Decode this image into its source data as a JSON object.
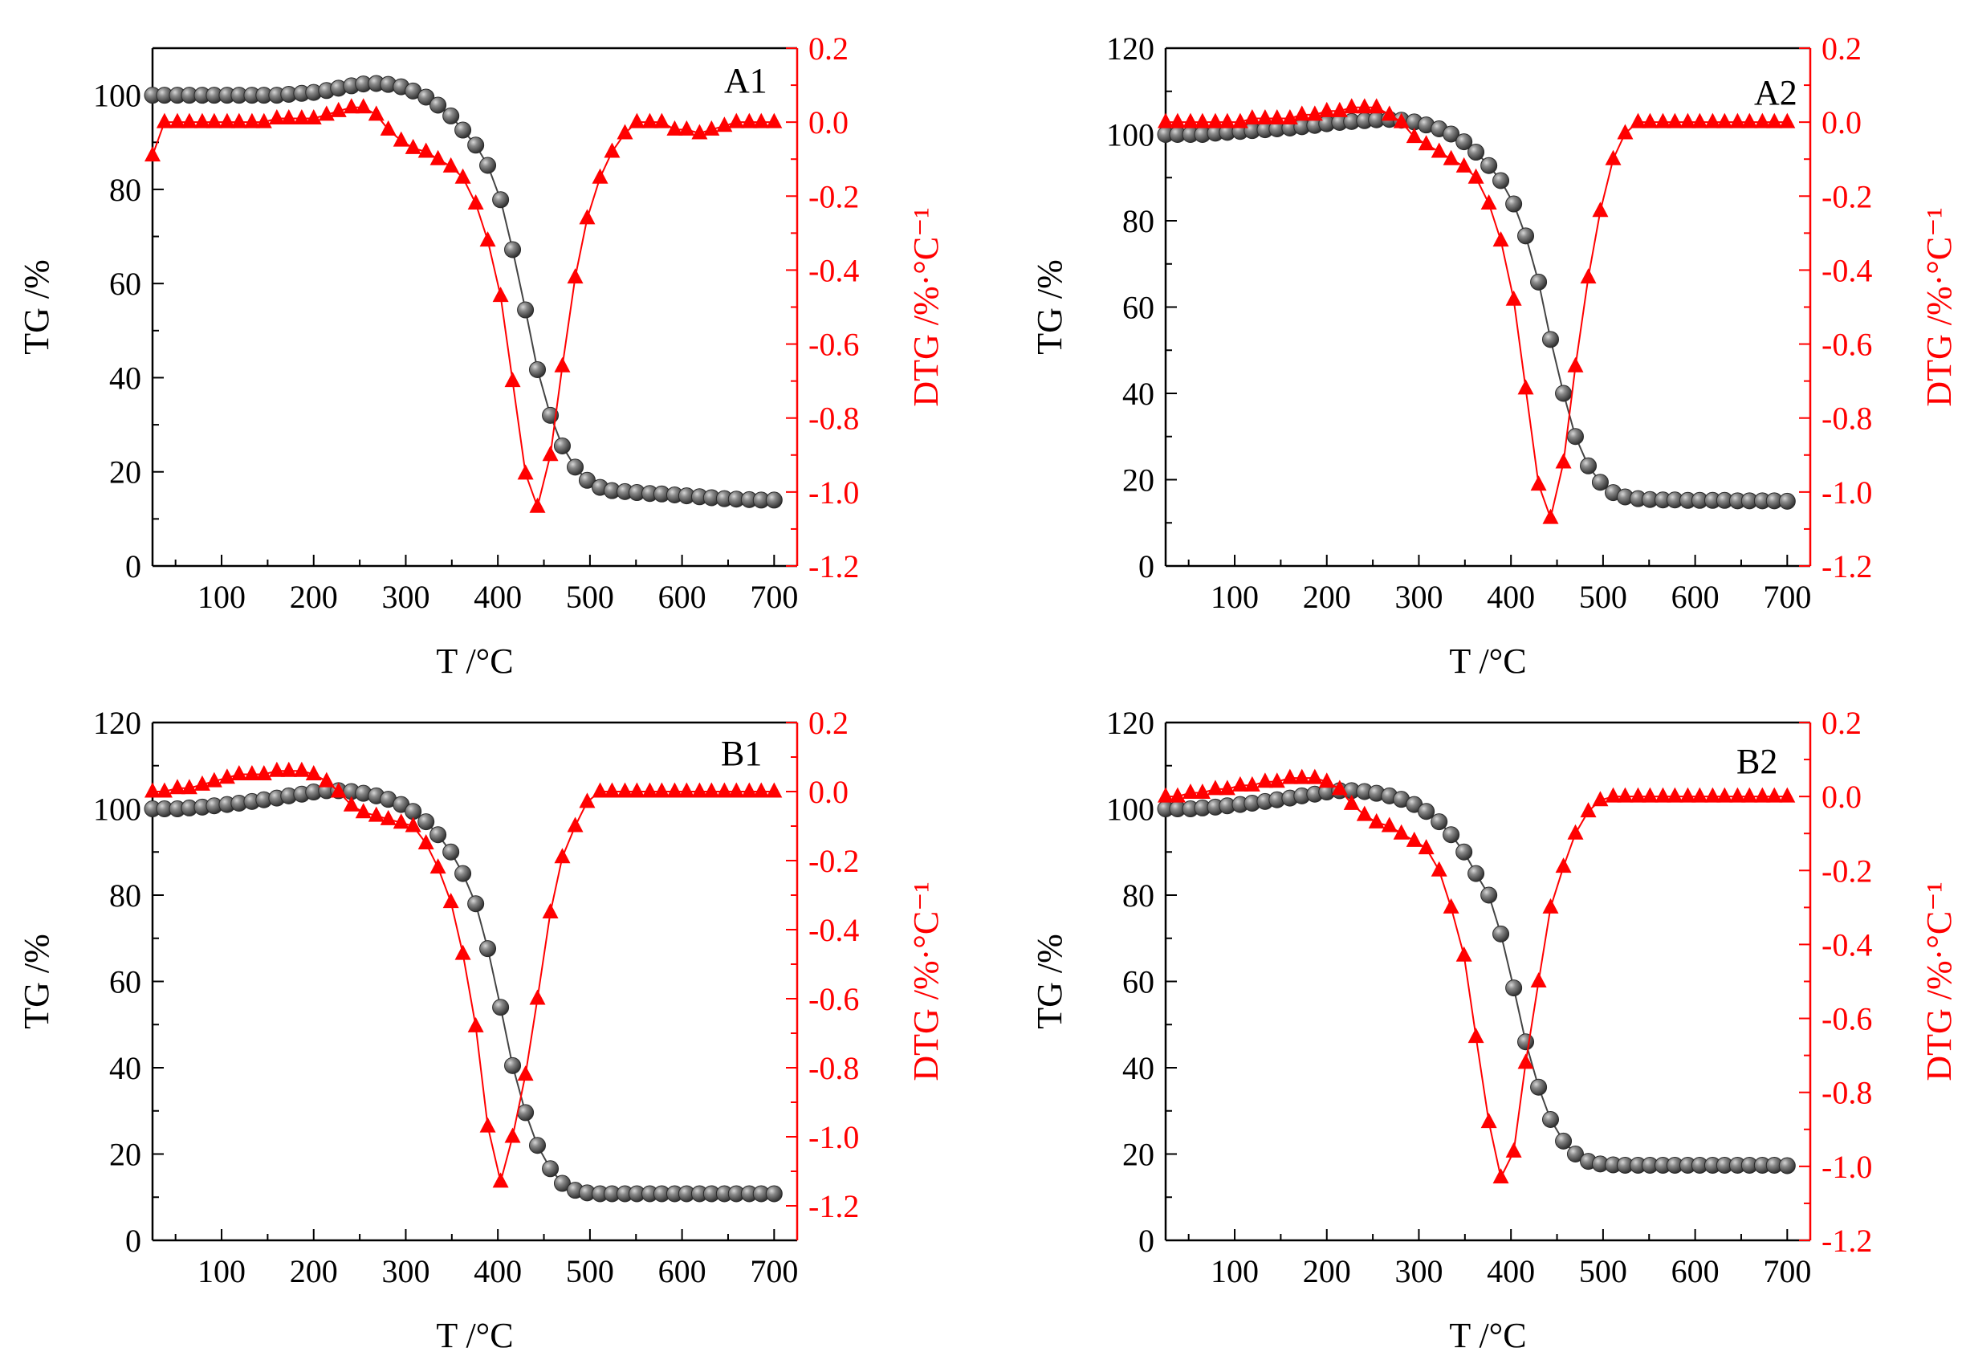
{
  "chart_data": [
    {
      "type": "line",
      "panel": "A1",
      "x": [
        25,
        38,
        52,
        65,
        79,
        92,
        106,
        119,
        133,
        146,
        160,
        173,
        187,
        200,
        214,
        227,
        241,
        254,
        268,
        281,
        295,
        308,
        322,
        335,
        349,
        362,
        376,
        389,
        403,
        416,
        430,
        443,
        457,
        470,
        484,
        497,
        511,
        524,
        538,
        551,
        565,
        578,
        592,
        605,
        619,
        632,
        646,
        659,
        673,
        686,
        700
      ],
      "series": [
        {
          "name": "TG",
          "axis": "left",
          "marker": "sphere",
          "color": "#404040",
          "values": [
            100,
            100,
            100,
            100,
            100,
            100,
            100,
            100,
            100,
            100,
            100,
            100.2,
            100.4,
            100.6,
            101,
            101.5,
            102,
            102.4,
            102.5,
            102.3,
            101.8,
            100.9,
            99.6,
            97.9,
            95.6,
            92.6,
            89.4,
            85.1,
            77.8,
            67.2,
            54.4,
            41.7,
            32,
            25.5,
            21,
            18.2,
            16.7,
            16,
            15.8,
            15.6,
            15.4,
            15.3,
            15.1,
            14.9,
            14.7,
            14.5,
            14.3,
            14.2,
            14.1,
            14,
            14
          ]
        },
        {
          "name": "DTG",
          "axis": "right",
          "marker": "triangle",
          "color": "#ff0000",
          "values": [
            -0.09,
            0,
            0,
            0,
            0,
            0,
            0,
            0,
            0,
            0,
            0.01,
            0.01,
            0.01,
            0.01,
            0.02,
            0.03,
            0.04,
            0.04,
            0.02,
            -0.02,
            -0.05,
            -0.07,
            -0.08,
            -0.1,
            -0.12,
            -0.15,
            -0.22,
            -0.32,
            -0.47,
            -0.7,
            -0.95,
            -1.04,
            -0.9,
            -0.66,
            -0.42,
            -0.26,
            -0.15,
            -0.08,
            -0.03,
            0,
            0,
            0,
            -0.02,
            -0.02,
            -0.03,
            -0.02,
            -0.01,
            0,
            0,
            0,
            0
          ]
        }
      ],
      "xlabel": "T /°C",
      "ylabel": "TG /%",
      "y2label": "DTG /%·°C⁻¹",
      "xlim": [
        25,
        725
      ],
      "ylim": [
        0,
        110
      ],
      "y2lim": [
        -1.2,
        0.2
      ],
      "xticks": [
        "100",
        "200",
        "300",
        "400",
        "500",
        "600",
        "700"
      ],
      "yticks": [
        "0",
        "20",
        "40",
        "60",
        "80",
        "100"
      ],
      "y2ticks": [
        "-1.2",
        "-1.0",
        "-0.8",
        "-0.6",
        "-0.4",
        "-0.2",
        "0.0",
        "0.2"
      ],
      "legend": "none"
    },
    {
      "type": "line",
      "panel": "A2",
      "x": [
        25,
        38,
        52,
        65,
        79,
        92,
        106,
        119,
        133,
        146,
        160,
        173,
        187,
        200,
        214,
        227,
        241,
        254,
        268,
        281,
        295,
        308,
        322,
        335,
        349,
        362,
        376,
        389,
        403,
        416,
        430,
        443,
        457,
        470,
        484,
        497,
        511,
        524,
        538,
        551,
        565,
        578,
        592,
        605,
        619,
        632,
        646,
        659,
        673,
        686,
        700
      ],
      "series": [
        {
          "name": "TG",
          "axis": "left",
          "marker": "sphere",
          "color": "#404040",
          "values": [
            100,
            100,
            100,
            100,
            100.3,
            100.5,
            100.7,
            100.9,
            101.1,
            101.3,
            101.5,
            101.8,
            102.1,
            102.5,
            102.8,
            103,
            103.2,
            103.4,
            103.5,
            103.3,
            102.9,
            102.2,
            101.3,
            100.1,
            98.3,
            95.9,
            92.8,
            89.3,
            83.9,
            76.5,
            65.8,
            52.5,
            40,
            30,
            23.2,
            19.4,
            17,
            16,
            15.6,
            15.4,
            15.3,
            15.3,
            15.2,
            15.2,
            15.2,
            15.2,
            15.1,
            15.1,
            15.1,
            15.1,
            15
          ]
        },
        {
          "name": "DTG",
          "axis": "right",
          "marker": "triangle",
          "color": "#ff0000",
          "values": [
            0,
            0,
            0,
            0,
            0,
            0,
            0,
            0.01,
            0.01,
            0.01,
            0.01,
            0.02,
            0.02,
            0.03,
            0.03,
            0.04,
            0.04,
            0.04,
            0.02,
            0,
            -0.04,
            -0.06,
            -0.08,
            -0.1,
            -0.12,
            -0.15,
            -0.22,
            -0.32,
            -0.48,
            -0.72,
            -0.98,
            -1.07,
            -0.92,
            -0.66,
            -0.42,
            -0.24,
            -0.1,
            -0.03,
            0,
            0,
            0,
            0,
            0,
            0,
            0,
            0,
            0,
            0,
            0,
            0,
            0
          ]
        }
      ],
      "xlabel": "T /°C",
      "ylabel": "TG /%",
      "y2label": "DTG /%·°C⁻¹",
      "xlim": [
        25,
        725
      ],
      "ylim": [
        0,
        120
      ],
      "y2lim": [
        -1.2,
        0.2
      ],
      "xticks": [
        "100",
        "200",
        "300",
        "400",
        "500",
        "600",
        "700"
      ],
      "yticks": [
        "0",
        "20",
        "40",
        "60",
        "80",
        "100",
        "120"
      ],
      "y2ticks": [
        "-1.2",
        "-1.0",
        "-0.8",
        "-0.6",
        "-0.4",
        "-0.2",
        "0.0",
        "0.2"
      ],
      "legend": "none"
    },
    {
      "type": "line",
      "panel": "B1",
      "x": [
        25,
        38,
        52,
        65,
        79,
        92,
        106,
        119,
        133,
        146,
        160,
        173,
        187,
        200,
        214,
        227,
        241,
        254,
        268,
        281,
        295,
        308,
        322,
        335,
        349,
        362,
        376,
        389,
        403,
        416,
        430,
        443,
        457,
        470,
        484,
        497,
        511,
        524,
        538,
        551,
        565,
        578,
        592,
        605,
        619,
        632,
        646,
        659,
        673,
        686,
        700
      ],
      "series": [
        {
          "name": "TG",
          "axis": "left",
          "marker": "sphere",
          "color": "#404040",
          "values": [
            100,
            100,
            100,
            100.2,
            100.4,
            100.7,
            101,
            101.3,
            101.7,
            102.1,
            102.5,
            103,
            103.4,
            103.9,
            104.2,
            104.2,
            104,
            103.6,
            103,
            102.2,
            101,
            99.4,
            97,
            94,
            90,
            85,
            78,
            67.6,
            54,
            40.5,
            29.6,
            22,
            16.6,
            13.2,
            11.6,
            11,
            10.8,
            10.8,
            10.8,
            10.8,
            10.8,
            10.8,
            10.8,
            10.8,
            10.8,
            10.8,
            10.8,
            10.8,
            10.8,
            10.8,
            10.8
          ]
        },
        {
          "name": "DTG",
          "axis": "right",
          "marker": "triangle",
          "color": "#ff0000",
          "values": [
            0,
            0,
            0.01,
            0.01,
            0.02,
            0.03,
            0.04,
            0.05,
            0.05,
            0.05,
            0.06,
            0.06,
            0.06,
            0.05,
            0.03,
            0,
            -0.04,
            -0.06,
            -0.07,
            -0.08,
            -0.09,
            -0.1,
            -0.15,
            -0.22,
            -0.32,
            -0.47,
            -0.68,
            -0.97,
            -1.13,
            -1.0,
            -0.82,
            -0.6,
            -0.35,
            -0.19,
            -0.1,
            -0.03,
            0,
            0,
            0,
            0,
            0,
            0,
            0,
            0,
            0,
            0,
            0,
            0,
            0,
            0,
            0
          ]
        }
      ],
      "xlabel": "T /°C",
      "ylabel": "TG /%",
      "y2label": "DTG /%·°C⁻¹",
      "xlim": [
        25,
        725
      ],
      "ylim": [
        0,
        120
      ],
      "y2lim": [
        -1.3,
        0.2
      ],
      "xticks": [
        "100",
        "200",
        "300",
        "400",
        "500",
        "600",
        "700"
      ],
      "yticks": [
        "0",
        "20",
        "40",
        "60",
        "80",
        "100",
        "120"
      ],
      "y2ticks": [
        "-1.2",
        "-1.0",
        "-0.8",
        "-0.6",
        "-0.4",
        "-0.2",
        "0.0",
        "0.2"
      ],
      "legend": "none"
    },
    {
      "type": "line",
      "panel": "B2",
      "x": [
        25,
        38,
        52,
        65,
        79,
        92,
        106,
        119,
        133,
        146,
        160,
        173,
        187,
        200,
        214,
        227,
        241,
        254,
        268,
        281,
        295,
        308,
        322,
        335,
        349,
        362,
        376,
        389,
        403,
        416,
        430,
        443,
        457,
        470,
        484,
        497,
        511,
        524,
        538,
        551,
        565,
        578,
        592,
        605,
        619,
        632,
        646,
        659,
        673,
        686,
        700
      ],
      "series": [
        {
          "name": "TG",
          "axis": "left",
          "marker": "sphere",
          "color": "#404040",
          "values": [
            100,
            100,
            100,
            100.2,
            100.4,
            100.7,
            101,
            101.3,
            101.7,
            102.1,
            102.5,
            103,
            103.4,
            103.9,
            104.2,
            104.2,
            104,
            103.6,
            103,
            102.2,
            101,
            99.4,
            97,
            94,
            90,
            85,
            80,
            71,
            58.5,
            46,
            35.5,
            28,
            23,
            20,
            18.3,
            17.7,
            17.5,
            17.4,
            17.4,
            17.4,
            17.4,
            17.4,
            17.4,
            17.4,
            17.4,
            17.4,
            17.4,
            17.4,
            17.4,
            17.4,
            17.3
          ]
        },
        {
          "name": "DTG",
          "axis": "right",
          "marker": "triangle",
          "color": "#ff0000",
          "values": [
            0,
            0,
            0.01,
            0.01,
            0.02,
            0.02,
            0.03,
            0.03,
            0.04,
            0.04,
            0.05,
            0.05,
            0.05,
            0.04,
            0.02,
            -0.02,
            -0.05,
            -0.07,
            -0.08,
            -0.1,
            -0.12,
            -0.14,
            -0.2,
            -0.3,
            -0.43,
            -0.65,
            -0.88,
            -1.03,
            -0.96,
            -0.72,
            -0.5,
            -0.3,
            -0.19,
            -0.1,
            -0.04,
            -0.01,
            0,
            0,
            0,
            0,
            0,
            0,
            0,
            0,
            0,
            0,
            0,
            0,
            0,
            0,
            0
          ]
        }
      ],
      "xlabel": "T /°C",
      "ylabel": "TG /%",
      "y2label": "DTG /%·°C⁻¹",
      "xlim": [
        25,
        725
      ],
      "ylim": [
        0,
        120
      ],
      "y2lim": [
        -1.2,
        0.2
      ],
      "xticks": [
        "100",
        "200",
        "300",
        "400",
        "500",
        "600",
        "700"
      ],
      "yticks": [
        "0",
        "20",
        "40",
        "60",
        "80",
        "100",
        "120"
      ],
      "y2ticks": [
        "-1.2",
        "-1.0",
        "-0.8",
        "-0.6",
        "-0.4",
        "-0.2",
        "0.0",
        "0.2"
      ],
      "legend": "none"
    }
  ],
  "colors": {
    "tg": "#404040",
    "dtg": "#ff0000",
    "axis": "#000000"
  }
}
